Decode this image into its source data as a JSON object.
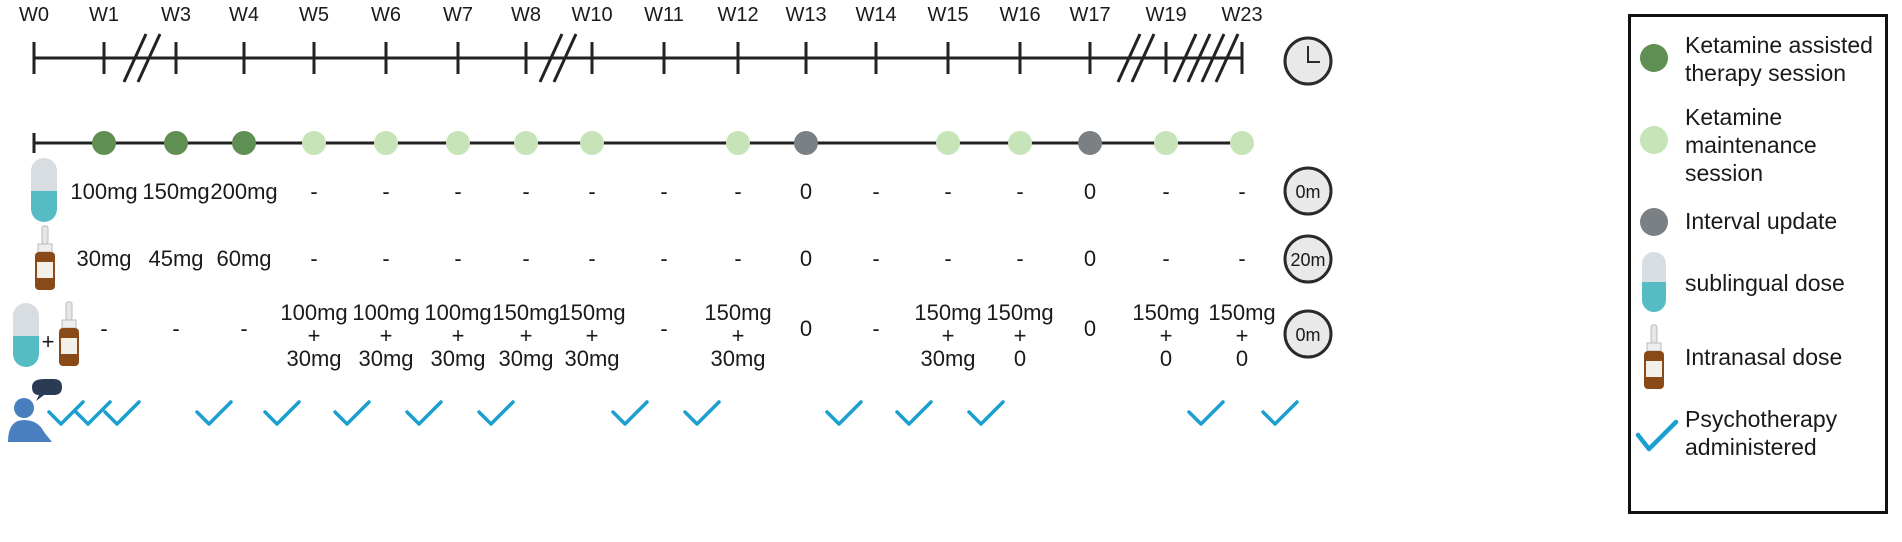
{
  "weeks": [
    "W0",
    "W1",
    "W3",
    "W4",
    "W5",
    "W6",
    "W7",
    "W8",
    "W10",
    "W11",
    "W12",
    "W13",
    "W14",
    "W15",
    "W16",
    "W17",
    "W19",
    "W23"
  ],
  "sessions": [
    "none",
    "therapy",
    "therapy",
    "therapy",
    "maintenance",
    "maintenance",
    "maintenance",
    "maintenance",
    "maintenance",
    "none",
    "maintenance",
    "interval",
    "none",
    "maintenance",
    "maintenance",
    "interval",
    "maintenance",
    "maintenance"
  ],
  "rows": {
    "sublingual": [
      "",
      "100mg",
      "150mg",
      "200mg",
      "-",
      "-",
      "-",
      "-",
      "-",
      "-",
      "-",
      "0",
      "-",
      "-",
      "-",
      "0",
      "-",
      "-"
    ],
    "intranasal": [
      "",
      "30mg",
      "45mg",
      "60mg",
      "-",
      "-",
      "-",
      "-",
      "-",
      "-",
      "-",
      "0",
      "-",
      "-",
      "-",
      "0",
      "-",
      "-"
    ],
    "combined": [
      [],
      [
        "-"
      ],
      [
        "-"
      ],
      [
        "-"
      ],
      [
        "100mg",
        "+",
        "30mg"
      ],
      [
        "100mg",
        "+",
        "30mg"
      ],
      [
        "100mg",
        "+",
        "30mg"
      ],
      [
        "150mg",
        "+",
        "30mg"
      ],
      [
        "150mg",
        "+",
        "30mg"
      ],
      [
        "-"
      ],
      [
        "150mg",
        "+",
        "30mg"
      ],
      [
        "0"
      ],
      [
        "-"
      ],
      [
        "150mg",
        "+",
        "30mg"
      ],
      [
        "150mg",
        "+",
        "0"
      ],
      [
        "0"
      ],
      [
        "150mg",
        "+",
        "0"
      ],
      [
        "150mg",
        "+",
        "0"
      ]
    ]
  },
  "combined_plus": "+",
  "durations": [
    "0m",
    "20m",
    "0m"
  ],
  "psychotherapy_weeks": [
    "W1",
    "W3",
    "W4",
    "W5",
    "W6",
    "W7",
    "W10",
    "W11",
    "W13",
    "W14",
    "W15",
    "W19",
    "W23"
  ],
  "legend": {
    "therapy": "Ketamine assisted therapy session",
    "maintenance": "Ketamine maintenance session",
    "interval": "Interval update",
    "sublingual": "sublingual dose",
    "intranasal": "Intranasal dose",
    "psychotherapy": "Psychotherapy administered"
  },
  "colors": {
    "therapy": "#5f8f52",
    "maintenance": "#c7e4b8",
    "interval": "#7b8085",
    "check": "#1a9fd0",
    "capsule_top": "#d8dde2",
    "capsule_bottom": "#56bcc4",
    "bottle": "#8a4a17",
    "person": "#4a7fbf",
    "speech": "#2b3a55"
  }
}
